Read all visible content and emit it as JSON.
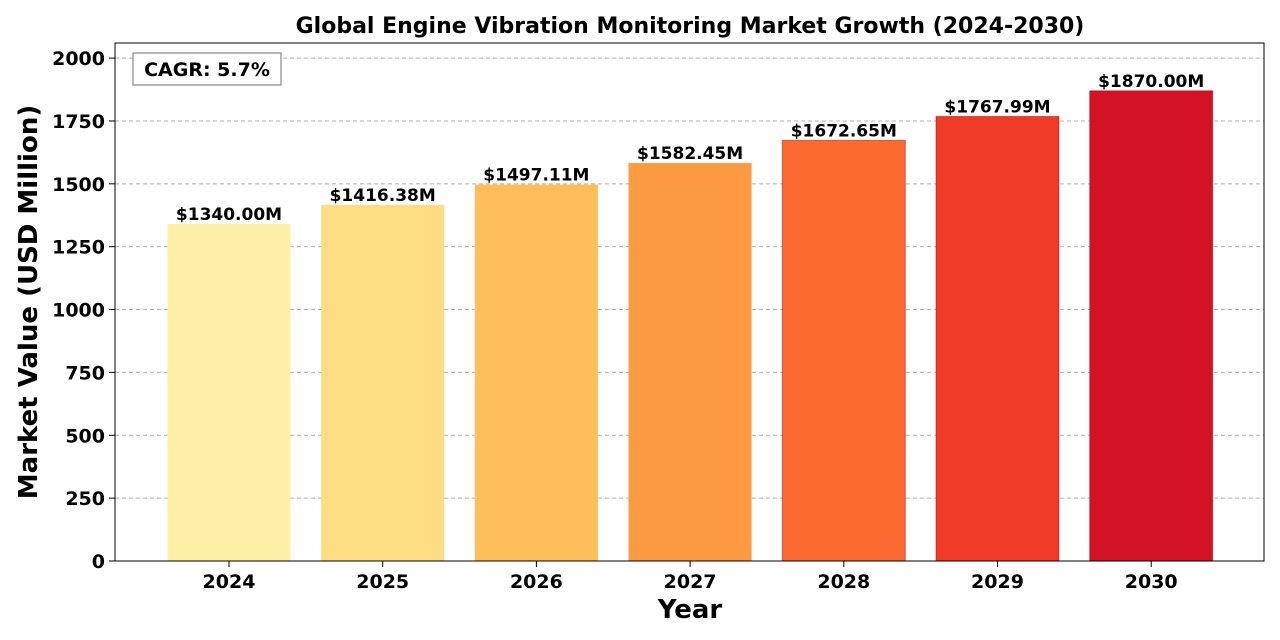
{
  "chart_data": {
    "type": "bar",
    "title": "Global Engine Vibration Monitoring Market Growth (2024-2030)",
    "xlabel": "Year",
    "ylabel": "Market Value (USD Million)",
    "categories": [
      "2024",
      "2025",
      "2026",
      "2027",
      "2028",
      "2029",
      "2030"
    ],
    "values": [
      1340.0,
      1416.38,
      1497.11,
      1582.45,
      1672.65,
      1767.99,
      1870.0
    ],
    "data_labels": [
      "$1340.00M",
      "$1416.38M",
      "$1497.11M",
      "$1582.45M",
      "$1672.65M",
      "$1767.99M",
      "$1870.00M"
    ],
    "colors": [
      "#fff0a8",
      "#fddc82",
      "#febe5a",
      "#fd9a42",
      "#fc6a32",
      "#ef3a27",
      "#d31323"
    ],
    "ylim": [
      0,
      2060
    ],
    "yticks": [
      0,
      250,
      500,
      750,
      1000,
      1250,
      1500,
      1750,
      2000
    ],
    "grid": "y-dashed",
    "annotation": "CAGR: 5.7%"
  }
}
